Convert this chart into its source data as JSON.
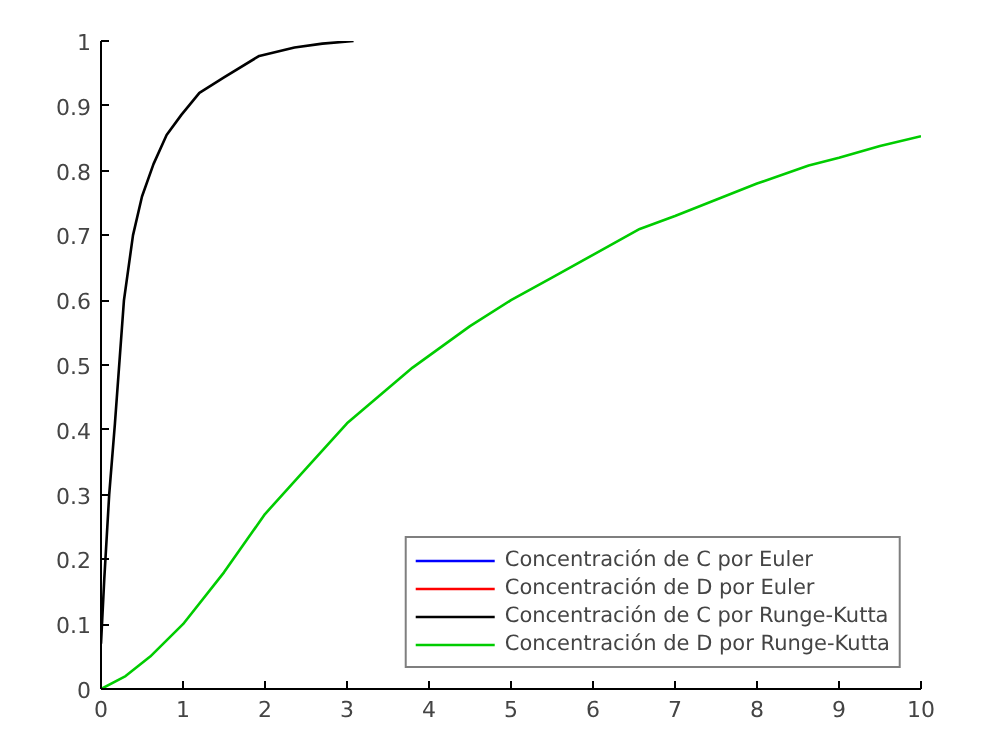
{
  "chart_data": {
    "type": "line",
    "xlim": [
      0,
      10
    ],
    "ylim": [
      0,
      1
    ],
    "xticks": [
      0,
      1,
      2,
      3,
      4,
      5,
      6,
      7,
      8,
      9,
      10
    ],
    "yticks": [
      0,
      0.1,
      0.2,
      0.3,
      0.4,
      0.5,
      0.6,
      0.7,
      0.8,
      0.9,
      1
    ],
    "grid": false,
    "legend": "bottom right",
    "line_style": "solid",
    "marker": "none",
    "series": [
      {
        "name": "Concentración de C por Euler",
        "color": "#0000ff"
      },
      {
        "name": "Concentración de D por Euler",
        "color": "#ff0000"
      },
      {
        "name": "Concentración de C por Runge-Kutta",
        "color": "#000000",
        "x": [
          0,
          0.04,
          0.1,
          0.17,
          0.28,
          0.39,
          0.5,
          0.64,
          0.8,
          0.98,
          1.2,
          1.5,
          1.93,
          2.36,
          2.7,
          3.08
        ],
        "values": [
          0.07,
          0.17,
          0.3,
          0.41,
          0.6,
          0.7,
          0.76,
          0.81,
          0.855,
          0.886,
          0.92,
          0.944,
          0.977,
          0.99,
          0.996,
          1.0
        ]
      },
      {
        "name": "Concentración de D por Runge-Kutta",
        "color": "#00cc00",
        "x": [
          0,
          0.3,
          0.6,
          1,
          1.5,
          2,
          2.5,
          3,
          3.8,
          4.5,
          5,
          5.5,
          6,
          6.57,
          7,
          7.5,
          8,
          8.63,
          9,
          9.5,
          10
        ],
        "values": [
          0,
          0.02,
          0.05,
          0.1,
          0.18,
          0.27,
          0.34,
          0.41,
          0.496,
          0.56,
          0.6,
          0.635,
          0.67,
          0.71,
          0.73,
          0.755,
          0.78,
          0.808,
          0.82,
          0.838,
          0.853
        ]
      }
    ]
  }
}
